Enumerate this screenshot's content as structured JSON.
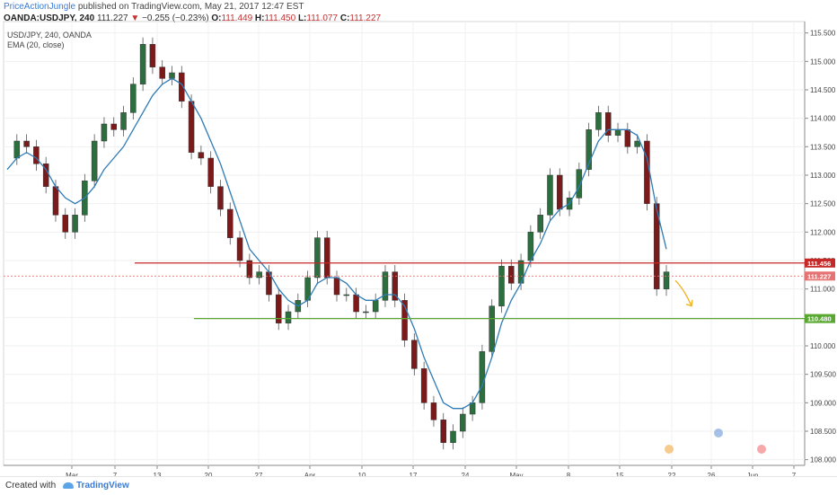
{
  "header": {
    "author": "PriceActionJungle",
    "published": "published on TradingView.com, May 21, 2017 12:47 EST",
    "symbol": "OANDA:USDJPY, 240",
    "last": "111.227",
    "change": "−0.255 (−0.23%)",
    "open_label": "O:",
    "open": "111.449",
    "high_label": "H:",
    "high": "111.450",
    "low_label": "L:",
    "low": "111.077",
    "close_label": "C:",
    "close": "111.227"
  },
  "legend": {
    "symbol": "USD/JPY, 240, OANDA",
    "indicator": "EMA (20, close)"
  },
  "footer": {
    "created_with": "Created with",
    "brand": "TradingView"
  },
  "colors": {
    "up": "#2c6e3e",
    "down": "#7a1a1a",
    "ema": "#2e7bb6",
    "resistance": "#c62828",
    "support": "#5aa832",
    "current": "#e57373",
    "arrow": "#f0b020"
  },
  "chart_data": {
    "type": "line",
    "ylim": [
      107.9,
      115.7
    ],
    "y_ticks": [
      108.0,
      108.5,
      109.0,
      109.5,
      110.0,
      110.5,
      111.0,
      111.5,
      112.0,
      112.5,
      113.0,
      113.5,
      114.0,
      114.5,
      115.0,
      115.5
    ],
    "y_tick_labels": [
      "108.000",
      "108.500",
      "109.000",
      "109.500",
      "110.000",
      "110.500",
      "111.000",
      "111.500",
      "112.000",
      "112.500",
      "113.000",
      "113.500",
      "114.000",
      "114.500",
      "115.000",
      "115.500"
    ],
    "x_ticks": [
      "Mar",
      "7",
      "13",
      "20",
      "27",
      "Apr",
      "10",
      "17",
      "24",
      "May",
      "8",
      "15",
      "22",
      "26",
      "Jun",
      "7"
    ],
    "series": [
      {
        "values": [
          113.3,
          113.6,
          113.5,
          113.2,
          112.8,
          112.3,
          112.0,
          112.3,
          112.9,
          113.6,
          113.9,
          113.8,
          114.1,
          114.6,
          115.3,
          114.9,
          114.7,
          114.8,
          114.3,
          113.4,
          113.3,
          112.8,
          112.4,
          111.9,
          111.5,
          111.2,
          111.3,
          110.9,
          110.4,
          110.6,
          110.8,
          111.2,
          111.9,
          111.2,
          110.9,
          110.9,
          110.6,
          110.6,
          110.8,
          111.3,
          110.8,
          110.1,
          109.6,
          109.0,
          108.7,
          108.3,
          108.5,
          108.8,
          109.0,
          109.9,
          110.7,
          111.4,
          111.1,
          111.5,
          112.0,
          112.3,
          113.0,
          112.4,
          112.6,
          113.1,
          113.8,
          114.1,
          113.7,
          113.8,
          113.5,
          113.6,
          112.5,
          111.0,
          111.3
        ]
      },
      {
        "name": "EMA (20, close)",
        "values": [
          113.1,
          113.3,
          113.4,
          113.3,
          113.1,
          112.8,
          112.6,
          112.5,
          112.6,
          112.8,
          113.1,
          113.3,
          113.5,
          113.8,
          114.1,
          114.4,
          114.6,
          114.7,
          114.6,
          114.3,
          114.0,
          113.6,
          113.2,
          112.7,
          112.2,
          111.7,
          111.5,
          111.3,
          111.0,
          110.8,
          110.7,
          110.8,
          111.1,
          111.2,
          111.2,
          111.1,
          110.9,
          110.8,
          110.8,
          110.9,
          110.9,
          110.7,
          110.3,
          109.8,
          109.4,
          109.0,
          108.9,
          108.9,
          109.0,
          109.3,
          109.8,
          110.4,
          110.8,
          111.1,
          111.5,
          111.8,
          112.2,
          112.4,
          112.5,
          112.8,
          113.2,
          113.6,
          113.8,
          113.8,
          113.8,
          113.7,
          113.3,
          112.4,
          111.7
        ]
      }
    ],
    "levels": [
      {
        "value": 111.456,
        "label": "111.456"
      },
      {
        "value": 111.227,
        "label": "111.227"
      },
      {
        "value": 110.48,
        "label": "110.480"
      }
    ]
  }
}
